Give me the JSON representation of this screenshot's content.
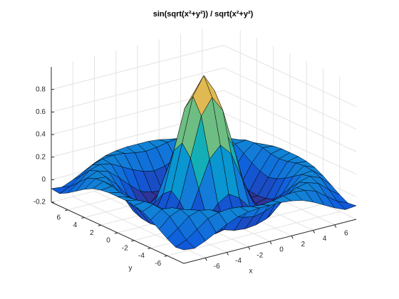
{
  "chart_data": {
    "type": "surface",
    "title": "sin(sqrt(x²+y²)) / sqrt(x²+y²)",
    "xlabel": "x",
    "ylabel": "y",
    "x": [
      -8,
      -7,
      -6,
      -5,
      -4,
      -3,
      -2,
      -1,
      0,
      1,
      2,
      3,
      4,
      5,
      6,
      7,
      8
    ],
    "y": [
      -8,
      -7,
      -6,
      -5,
      -4,
      -3,
      -2,
      -1,
      0,
      1,
      2,
      3,
      4,
      5,
      6,
      7,
      8
    ],
    "z": [
      [
        -0.08,
        -0.09,
        -0.05,
        0,
        0.05,
        0.09,
        0.11,
        0.12,
        0.12,
        0.12,
        0.11,
        0.09,
        0.05,
        0,
        -0.05,
        -0.09,
        -0.08
      ],
      [
        -0.09,
        -0.05,
        0.02,
        0.09,
        0.12,
        0.13,
        0.12,
        0.1,
        0.09,
        0.1,
        0.12,
        0.13,
        0.12,
        0.09,
        0.02,
        -0.05,
        -0.09
      ],
      [
        -0.05,
        0.02,
        0.1,
        0.13,
        0.11,
        0.06,
        0.01,
        -0.03,
        -0.05,
        -0.03,
        0.01,
        0.06,
        0.11,
        0.13,
        0.1,
        0.02,
        -0.05
      ],
      [
        0,
        0.09,
        0.13,
        0.1,
        0.02,
        -0.07,
        -0.15,
        -0.18,
        -0.19,
        -0.18,
        -0.15,
        -0.07,
        0.02,
        0.1,
        0.13,
        0.09,
        0
      ],
      [
        0.05,
        0.12,
        0.11,
        0.02,
        -0.1,
        -0.19,
        -0.22,
        -0.2,
        -0.19,
        -0.2,
        -0.22,
        -0.19,
        -0.1,
        0.02,
        0.11,
        0.12,
        0.05
      ],
      [
        0.09,
        0.13,
        0.06,
        -0.07,
        -0.19,
        -0.21,
        -0.12,
        -0.01,
        0.05,
        -0.01,
        -0.12,
        -0.21,
        -0.19,
        -0.07,
        0.06,
        0.13,
        0.09
      ],
      [
        0.11,
        0.12,
        0.01,
        -0.15,
        -0.22,
        -0.12,
        0.11,
        0.35,
        0.45,
        0.35,
        0.11,
        -0.12,
        -0.22,
        -0.15,
        0.01,
        0.12,
        0.11
      ],
      [
        0.12,
        0.1,
        -0.03,
        -0.18,
        -0.2,
        -0.01,
        0.35,
        0.7,
        0.84,
        0.7,
        0.35,
        -0.01,
        -0.2,
        -0.18,
        -0.03,
        0.1,
        0.12
      ],
      [
        0.12,
        0.09,
        -0.05,
        -0.19,
        -0.19,
        0.05,
        0.45,
        0.84,
        1,
        0.84,
        0.45,
        0.05,
        -0.19,
        -0.19,
        -0.05,
        0.09,
        0.12
      ],
      [
        0.12,
        0.1,
        -0.03,
        -0.18,
        -0.2,
        -0.01,
        0.35,
        0.7,
        0.84,
        0.7,
        0.35,
        -0.01,
        -0.2,
        -0.18,
        -0.03,
        0.1,
        0.12
      ],
      [
        0.11,
        0.12,
        0.01,
        -0.15,
        -0.22,
        -0.12,
        0.11,
        0.35,
        0.45,
        0.35,
        0.11,
        -0.12,
        -0.22,
        -0.15,
        0.01,
        0.12,
        0.11
      ],
      [
        0.09,
        0.13,
        0.06,
        -0.07,
        -0.19,
        -0.21,
        -0.12,
        -0.01,
        0.05,
        -0.01,
        -0.12,
        -0.21,
        -0.19,
        -0.07,
        0.06,
        0.13,
        0.09
      ],
      [
        0.05,
        0.12,
        0.11,
        0.02,
        -0.1,
        -0.19,
        -0.22,
        -0.2,
        -0.19,
        -0.2,
        -0.22,
        -0.19,
        -0.1,
        0.02,
        0.11,
        0.12,
        0.05
      ],
      [
        0,
        0.09,
        0.13,
        0.1,
        0.02,
        -0.07,
        -0.15,
        -0.18,
        -0.19,
        -0.18,
        -0.15,
        -0.07,
        0.02,
        0.1,
        0.13,
        0.09,
        0
      ],
      [
        -0.05,
        0.02,
        0.1,
        0.13,
        0.11,
        0.06,
        0.01,
        -0.03,
        -0.05,
        -0.03,
        0.01,
        0.06,
        0.11,
        0.13,
        0.1,
        0.02,
        -0.05
      ],
      [
        -0.09,
        -0.05,
        0.02,
        0.09,
        0.12,
        0.13,
        0.12,
        0.1,
        0.09,
        0.1,
        0.12,
        0.13,
        0.12,
        0.09,
        0.02,
        -0.05,
        -0.09
      ],
      [
        -0.08,
        -0.09,
        -0.05,
        0,
        0.05,
        0.09,
        0.11,
        0.12,
        0.12,
        0.12,
        0.11,
        0.09,
        0.05,
        0,
        -0.05,
        -0.09,
        -0.08
      ]
    ],
    "xlim": [
      -8,
      8
    ],
    "ylim": [
      -8,
      8
    ],
    "zlim": [
      -0.2,
      1
    ],
    "xticks": [
      -6,
      -4,
      -2,
      0,
      2,
      4,
      6
    ],
    "yticks": [
      -6,
      -4,
      -2,
      0,
      2,
      4,
      6
    ],
    "zticks": [
      -0.2,
      0,
      0.2,
      0.4,
      0.6,
      0.8
    ],
    "grid": true,
    "colormap": "parula",
    "edge_color": "#000000"
  }
}
